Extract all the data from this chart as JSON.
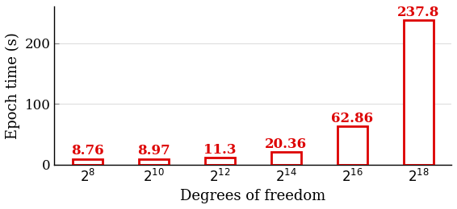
{
  "categories": [
    "$2^{8}$",
    "$2^{10}$",
    "$2^{12}$",
    "$2^{14}$",
    "$2^{16}$",
    "$2^{18}$"
  ],
  "values": [
    8.76,
    8.97,
    11.3,
    20.36,
    62.86,
    237.8
  ],
  "bar_edge_color": "#dd0000",
  "bar_face_color": "white",
  "xlabel": "Degrees of freedom",
  "ylabel": "Epoch time (s)",
  "ylim": [
    0,
    260
  ],
  "yticks": [
    0,
    100,
    200
  ],
  "ytick_labels": [
    "0",
    "100",
    "200"
  ],
  "label_fontsize": 13,
  "tick_fontsize": 12,
  "value_fontsize": 12,
  "bar_width": 0.45,
  "annotation_color": "#dd0000",
  "annotation_offsets": [
    2,
    2,
    2,
    2,
    2,
    2
  ],
  "linewidth": 2.0
}
